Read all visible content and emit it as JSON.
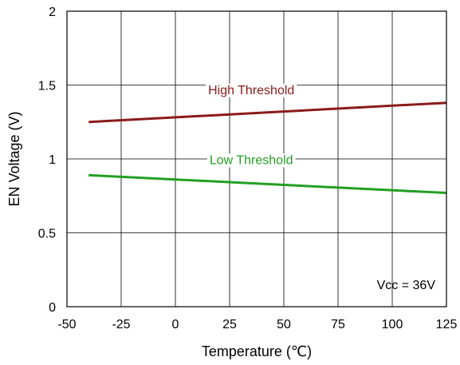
{
  "chart_data": {
    "type": "line",
    "title": "",
    "xlabel": "Temperature (℃)",
    "ylabel": "EN Voltage (V)",
    "xlim": [
      -50,
      125
    ],
    "ylim": [
      0,
      2
    ],
    "x_ticks": [
      -50,
      -25,
      0,
      25,
      50,
      75,
      100,
      125
    ],
    "y_ticks": [
      0,
      0.5,
      1,
      1.5,
      2
    ],
    "x_tick_labels": [
      "-50",
      "-25",
      "0",
      "25",
      "50",
      "75",
      "100",
      "125"
    ],
    "y_tick_labels": [
      "0",
      "0.5",
      "1",
      "1.5",
      "2"
    ],
    "grid": true,
    "series": [
      {
        "name": "High Threshold",
        "color": "#8b1a1a",
        "x": [
          -40,
          125
        ],
        "y": [
          1.25,
          1.38
        ]
      },
      {
        "name": "Low Threshold",
        "color": "#22a022",
        "x": [
          -40,
          125
        ],
        "y": [
          0.89,
          0.77
        ]
      }
    ],
    "annotations": [
      {
        "text": "Vcc = 36V"
      }
    ]
  }
}
